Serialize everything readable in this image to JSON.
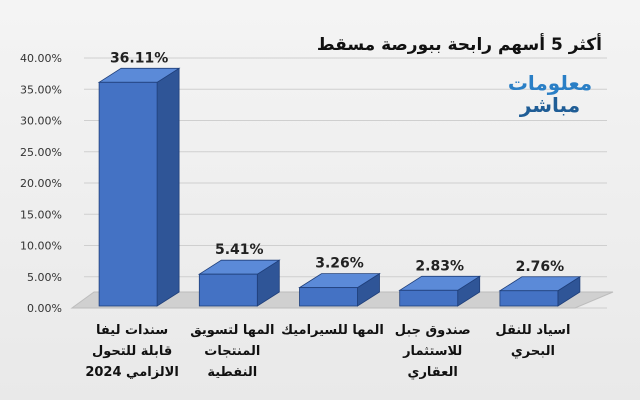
{
  "chart_data": {
    "type": "bar",
    "title": "أكثر 5 أسهم رابحة ببورصة مسقط",
    "categories": [
      [
        "سندات ليفا",
        "قابلة للتحول",
        "الالزامي 2024"
      ],
      [
        "المها لتسويق",
        "المنتجات",
        "النفطية"
      ],
      [
        "المها للسيراميك"
      ],
      [
        "صندوق جبل",
        "للاستثمار",
        "العقاري"
      ],
      [
        "اسياد للنقل",
        "البحري"
      ]
    ],
    "values": [
      36.11,
      5.41,
      3.26,
      2.83,
      2.76
    ],
    "data_labels": [
      "36.11%",
      "5.41%",
      "3.26%",
      "2.83%",
      "2.76%"
    ],
    "ylim": [
      0,
      40
    ],
    "yticks": [
      "0.00%",
      "5.00%",
      "10.00%",
      "15.00%",
      "20.00%",
      "25.00%",
      "30.00%",
      "35.00%",
      "40.00%"
    ],
    "grid": true,
    "colors": {
      "bar_front": "#4472c4",
      "bar_side": "#2f5597",
      "bar_top": "#5b8ad8",
      "floor": "#d0d0d0"
    }
  },
  "logo": {
    "line1": "معلومات",
    "line2": "مباشر"
  }
}
